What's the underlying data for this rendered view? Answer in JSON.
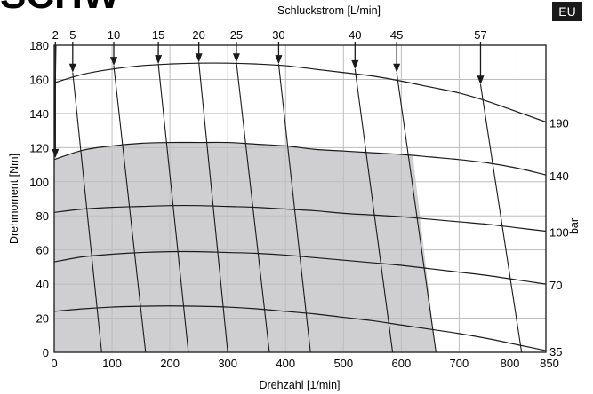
{
  "header": {
    "fragment": "SCHW",
    "badge": "EU"
  },
  "chart_data": {
    "type": "line",
    "title": "",
    "top_axis_label": "Schluckstrom [L/min]",
    "xlabel": "Drehzahl [1/min]",
    "ylabel": "Drehmoment [Nm]",
    "right_axis_label": "bar",
    "xlim": [
      0,
      850
    ],
    "ylim": [
      0,
      180
    ],
    "x_ticks": [
      0,
      100,
      200,
      300,
      400,
      500,
      600,
      700,
      800,
      850
    ],
    "y_ticks": [
      0,
      20,
      40,
      60,
      80,
      100,
      120,
      140,
      160,
      180
    ],
    "grid": true,
    "pressure_curves": [
      {
        "label": "190",
        "points": [
          [
            0,
            158
          ],
          [
            50,
            163
          ],
          [
            100,
            166
          ],
          [
            150,
            168
          ],
          [
            200,
            169
          ],
          [
            250,
            169.5
          ],
          [
            300,
            169.5
          ],
          [
            350,
            169
          ],
          [
            400,
            168
          ],
          [
            450,
            166
          ],
          [
            500,
            164
          ],
          [
            550,
            162
          ],
          [
            600,
            159
          ],
          [
            650,
            155.5
          ],
          [
            700,
            152
          ],
          [
            750,
            147
          ],
          [
            800,
            141
          ],
          [
            850,
            135
          ]
        ]
      },
      {
        "label": "140",
        "points": [
          [
            0,
            113
          ],
          [
            50,
            118.5
          ],
          [
            100,
            121
          ],
          [
            150,
            122.5
          ],
          [
            200,
            123
          ],
          [
            250,
            123
          ],
          [
            300,
            123
          ],
          [
            350,
            122
          ],
          [
            400,
            121
          ],
          [
            450,
            119
          ],
          [
            500,
            118
          ],
          [
            550,
            117
          ],
          [
            600,
            116
          ],
          [
            650,
            114.5
          ],
          [
            700,
            113
          ],
          [
            750,
            111
          ],
          [
            800,
            108
          ],
          [
            850,
            104
          ]
        ]
      },
      {
        "label": "100",
        "points": [
          [
            0,
            82
          ],
          [
            50,
            84
          ],
          [
            100,
            85
          ],
          [
            150,
            85.5
          ],
          [
            200,
            86
          ],
          [
            250,
            86
          ],
          [
            300,
            85.5
          ],
          [
            350,
            85
          ],
          [
            400,
            84
          ],
          [
            450,
            83
          ],
          [
            500,
            81.5
          ],
          [
            550,
            80.5
          ],
          [
            600,
            79.5
          ],
          [
            650,
            78
          ],
          [
            700,
            76.5
          ],
          [
            750,
            75
          ],
          [
            800,
            73
          ],
          [
            850,
            71
          ]
        ]
      },
      {
        "label": "70",
        "points": [
          [
            0,
            53
          ],
          [
            50,
            56
          ],
          [
            100,
            57.5
          ],
          [
            150,
            58.5
          ],
          [
            200,
            59
          ],
          [
            250,
            59
          ],
          [
            300,
            58.5
          ],
          [
            350,
            58
          ],
          [
            400,
            57
          ],
          [
            450,
            55.5
          ],
          [
            500,
            54
          ],
          [
            550,
            52.5
          ],
          [
            600,
            51
          ],
          [
            650,
            49
          ],
          [
            700,
            47
          ],
          [
            750,
            45
          ],
          [
            800,
            42.5
          ],
          [
            850,
            40
          ]
        ]
      },
      {
        "label": "35",
        "points": [
          [
            0,
            24
          ],
          [
            50,
            25.5
          ],
          [
            100,
            26.5
          ],
          [
            150,
            27
          ],
          [
            200,
            27.2
          ],
          [
            250,
            27
          ],
          [
            300,
            26.5
          ],
          [
            350,
            25.5
          ],
          [
            400,
            24
          ],
          [
            450,
            22.5
          ],
          [
            500,
            20.5
          ],
          [
            550,
            18.5
          ],
          [
            600,
            16
          ],
          [
            650,
            13.5
          ],
          [
            700,
            11
          ],
          [
            750,
            8
          ],
          [
            800,
            4.5
          ],
          [
            850,
            1
          ]
        ]
      }
    ],
    "flow_lines": [
      {
        "label": "2",
        "points": [
          [
            3,
            180
          ],
          [
            0,
            114
          ]
        ]
      },
      {
        "label": "5",
        "points": [
          [
            32,
            164
          ],
          [
            82,
            0
          ]
        ]
      },
      {
        "label": "10",
        "points": [
          [
            103,
            168
          ],
          [
            158,
            0
          ]
        ]
      },
      {
        "label": "15",
        "points": [
          [
            180,
            169
          ],
          [
            232,
            0
          ]
        ]
      },
      {
        "label": "20",
        "points": [
          [
            250,
            170
          ],
          [
            300,
            0
          ]
        ]
      },
      {
        "label": "25",
        "points": [
          [
            315,
            170
          ],
          [
            372,
            0
          ]
        ]
      },
      {
        "label": "30",
        "points": [
          [
            388,
            169
          ],
          [
            443,
            0
          ]
        ]
      },
      {
        "label": "40",
        "points": [
          [
            520,
            166
          ],
          [
            585,
            0
          ]
        ]
      },
      {
        "label": "45",
        "points": [
          [
            592,
            164
          ],
          [
            660,
            0
          ]
        ]
      },
      {
        "label": "57",
        "points": [
          [
            737,
            157
          ],
          [
            808,
            0
          ]
        ]
      }
    ],
    "flow_arrows": [
      {
        "label": "2",
        "x": 2
      },
      {
        "label": "5",
        "x": 32
      },
      {
        "label": "10",
        "x": 103
      },
      {
        "label": "15",
        "x": 180
      },
      {
        "label": "20",
        "x": 250
      },
      {
        "label": "25",
        "x": 315
      },
      {
        "label": "30",
        "x": 388
      },
      {
        "label": "40",
        "x": 520
      },
      {
        "label": "45",
        "x": 592
      },
      {
        "label": "57",
        "x": 737
      }
    ],
    "region": {
      "points": [
        [
          0,
          0
        ],
        [
          0,
          113
        ],
        [
          50,
          118.5
        ],
        [
          100,
          121
        ],
        [
          150,
          122.5
        ],
        [
          200,
          123
        ],
        [
          250,
          123
        ],
        [
          300,
          123
        ],
        [
          350,
          122
        ],
        [
          400,
          121
        ],
        [
          450,
          119
        ],
        [
          500,
          118
        ],
        [
          550,
          117
        ],
        [
          600,
          116
        ],
        [
          620,
          115
        ],
        [
          660,
          0
        ]
      ]
    },
    "colors": {
      "region": "#cfcfd1",
      "line": "#1a1a1a",
      "grid": "#bdbdbd"
    }
  }
}
